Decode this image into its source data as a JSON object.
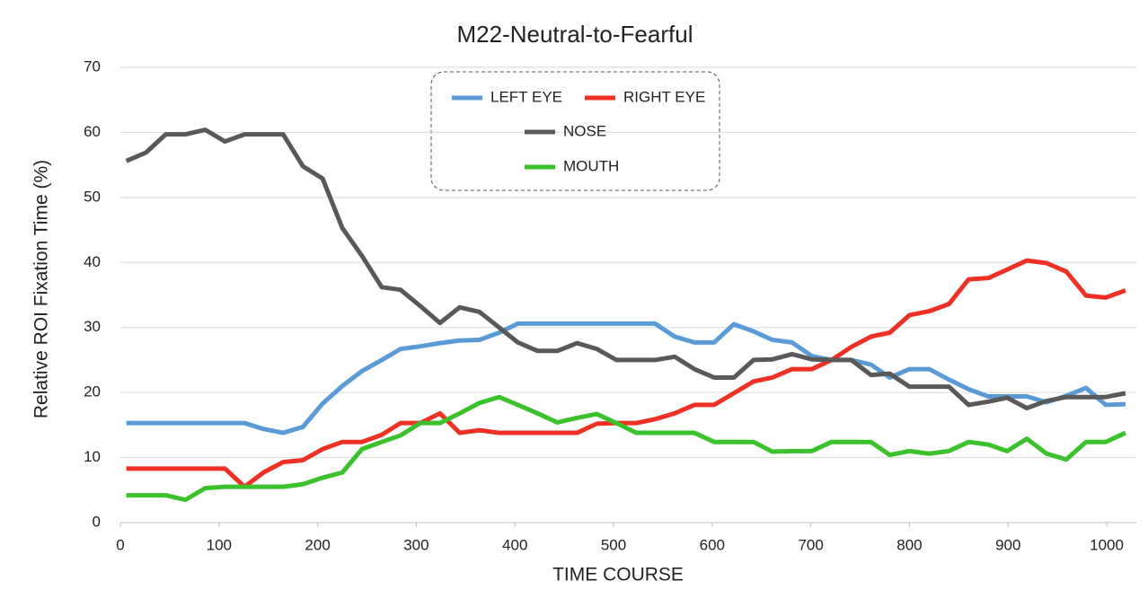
{
  "chart_data": {
    "type": "line",
    "title": "M22-Neutral-to-Fearful",
    "x_label": "TIME  COURSE",
    "y_label": "Relative  ROI  Fixation  Time  (%)",
    "x": [
      6,
      26,
      46,
      66,
      86,
      106,
      126,
      145,
      165,
      185,
      205,
      225,
      245,
      265,
      284,
      304,
      324,
      344,
      364,
      384,
      403,
      423,
      443,
      463,
      483,
      503,
      523,
      542,
      562,
      582,
      602,
      622,
      642,
      661,
      681,
      701,
      721,
      741,
      761,
      780,
      800,
      820,
      840,
      860,
      880,
      899,
      919,
      939,
      959,
      979,
      999,
      1019
    ],
    "series": [
      {
        "name": "LEFT EYE",
        "color": "#5b9bd5",
        "values": [
          15.3,
          15.3,
          15.3,
          15.3,
          15.3,
          15.3,
          15.3,
          14.4,
          13.8,
          14.7,
          18.3,
          21,
          23.3,
          25,
          26.7,
          27.1,
          27.6,
          28,
          28.1,
          29.2,
          30.6,
          30.6,
          30.6,
          30.6,
          30.6,
          30.6,
          30.6,
          30.6,
          28.6,
          27.7,
          27.7,
          30.5,
          29.4,
          28.1,
          27.7,
          25.6,
          25,
          25,
          24.3,
          22.3,
          23.6,
          23.6,
          22,
          20.5,
          19.4,
          19.4,
          19.4,
          18.5,
          19.5,
          20.7,
          18.1,
          18.2
        ]
      },
      {
        "name": "RIGHT EYE",
        "color": "#ee3124",
        "values": [
          8.3,
          8.3,
          8.3,
          8.3,
          8.3,
          8.3,
          5.5,
          7.7,
          9.3,
          9.6,
          11.3,
          12.4,
          12.4,
          13.5,
          15.3,
          15.3,
          16.8,
          13.8,
          14.2,
          13.8,
          13.8,
          13.8,
          13.8,
          13.8,
          15.2,
          15.3,
          15.3,
          15.9,
          16.8,
          18.1,
          18.1,
          19.9,
          21.7,
          22.3,
          23.6,
          23.6,
          25,
          27,
          28.6,
          29.2,
          31.9,
          32.5,
          33.6,
          37.4,
          37.6,
          38.9,
          40.3,
          39.9,
          38.6,
          34.9,
          34.6,
          35.7
        ]
      },
      {
        "name": "NOSE",
        "color": "#595959",
        "values": [
          55.6,
          56.9,
          59.7,
          59.7,
          60.4,
          58.6,
          59.7,
          59.7,
          59.7,
          54.8,
          52.9,
          45.3,
          41,
          36.2,
          35.8,
          33.3,
          30.7,
          33.1,
          32.4,
          30,
          27.7,
          26.4,
          26.4,
          27.6,
          26.7,
          25,
          25,
          25,
          25.5,
          23.6,
          22.3,
          22.3,
          25,
          25.1,
          25.9,
          25.1,
          25,
          25,
          22.7,
          22.9,
          20.9,
          20.9,
          20.9,
          18.1,
          18.6,
          19.2,
          17.6,
          18.7,
          19.3,
          19.3,
          19.3,
          19.9
        ]
      },
      {
        "name": "MOUTH",
        "color": "#3ac12c",
        "values": [
          4.2,
          4.2,
          4.2,
          3.5,
          5.3,
          5.5,
          5.5,
          5.5,
          5.5,
          5.9,
          6.9,
          7.7,
          11.3,
          12.4,
          13.4,
          15.3,
          15.3,
          16.8,
          18.4,
          19.3,
          18.1,
          16.8,
          15.4,
          16.1,
          16.7,
          15.3,
          13.8,
          13.8,
          13.8,
          13.8,
          12.4,
          12.4,
          12.4,
          10.9,
          11,
          11,
          12.4,
          12.4,
          12.4,
          10.4,
          11,
          10.6,
          11,
          12.4,
          12,
          11,
          12.9,
          10.6,
          9.7,
          12.4,
          12.4,
          13.8
        ]
      }
    ],
    "xlim": [
      0,
      1030
    ],
    "xticks": [
      0,
      100,
      200,
      300,
      400,
      500,
      600,
      700,
      800,
      900,
      1000
    ],
    "ylim": [
      0,
      70
    ],
    "yticks": [
      0,
      10,
      20,
      30,
      40,
      50,
      60,
      70
    ],
    "grid": true,
    "legend": "top"
  }
}
